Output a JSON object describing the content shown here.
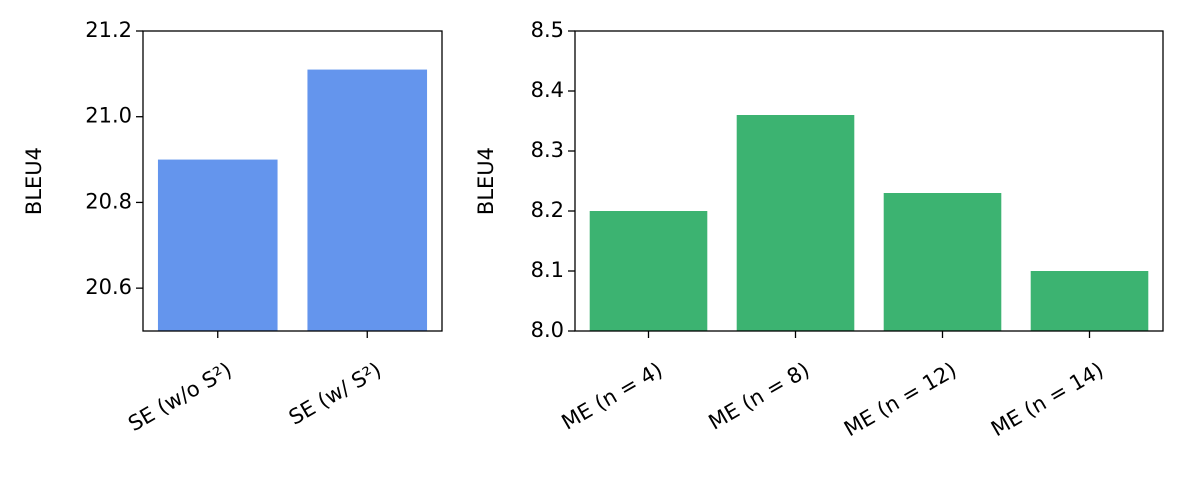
{
  "chart_data": [
    {
      "type": "bar",
      "y_label": "BLEU4",
      "categories": [
        "SE (w/o S²)",
        "SE (w/ S²)"
      ],
      "values": [
        20.9,
        21.11
      ],
      "color": "#6495ed",
      "ylim": [
        20.5,
        21.2
      ],
      "yticks": [
        20.6,
        20.8,
        {
          "value": 21,
          "label": "21.0"
        },
        21.2
      ]
    },
    {
      "type": "bar",
      "y_label": "BLEU4",
      "categories": [
        "ME (n = 4)",
        "ME (n = 8)",
        "ME (n = 12)",
        "ME (n = 14)"
      ],
      "values": [
        8.2,
        8.36,
        8.23,
        8.1
      ],
      "color": "#3cb371",
      "ylim": [
        8.0,
        8.5
      ],
      "yticks": [
        {
          "value": 8,
          "label": "8.0"
        },
        8.1,
        8.2,
        8.3,
        8.4,
        8.5
      ]
    }
  ]
}
